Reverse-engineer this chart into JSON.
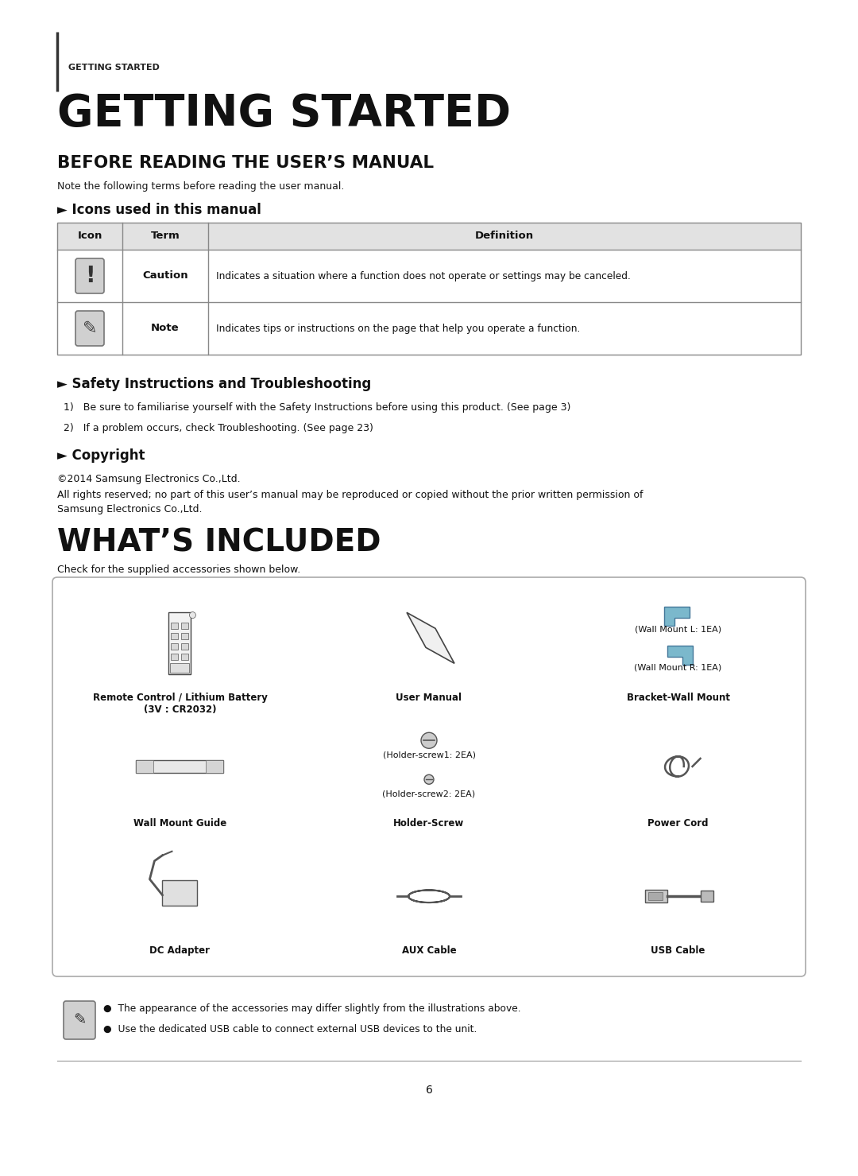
{
  "bg_color": "#ffffff",
  "header_label": "GETTING STARTED",
  "main_title": "GETTING STARTED",
  "section1_title": "BEFORE READING THE USER’S MANUAL",
  "section1_subtitle": "Note the following terms before reading the user manual.",
  "icons_section_title": "► Icons used in this manual",
  "table_header": [
    "Icon",
    "Term",
    "Definition"
  ],
  "caution_text": "Indicates a situation where a function does not operate or settings may be canceled.",
  "note_text": "Indicates tips or instructions on the page that help you operate a function.",
  "safety_title": "► Safety Instructions and Troubleshooting",
  "safety_item1": "1)   Be sure to familiarise yourself with the Safety Instructions before using this product. (See page 3)",
  "safety_item2": "2)   If a problem occurs, check Troubleshooting. (See page 23)",
  "copyright_title": "► Copyright",
  "copyright_line1": "©2014 Samsung Electronics Co.,Ltd.",
  "copyright_line2": "All rights reserved; no part of this user’s manual may be reproduced or copied without the prior written permission of Samsung Electronics Co.,Ltd.",
  "whats_included_title": "WHAT’S INCLUDED",
  "whats_included_subtitle": "Check for the supplied accessories shown below.",
  "bracket_sub1": "(Wall Mount L: 1EA)",
  "bracket_sub2": "(Wall Mount R: 1EA)",
  "holder_sub1": "(Holder-screw1: 2EA)",
  "holder_sub2": "(Holder-screw2: 2EA)",
  "label_remote": "Remote Control / Lithium Battery\n(3V : CR2032)",
  "label_manual": "User Manual",
  "label_bracket": "Bracket-Wall Mount",
  "label_wallmount": "Wall Mount Guide",
  "label_holderscrew": "Holder-Screw",
  "label_powercord": "Power Cord",
  "label_dcadapter": "DC Adapter",
  "label_auxcable": "AUX Cable",
  "label_usbcable": "USB Cable",
  "note_bullet1": "The appearance of the accessories may differ slightly from the illustrations above.",
  "note_bullet2": "Use the dedicated USB cable to connect external USB devices to the unit.",
  "page_number": "6"
}
